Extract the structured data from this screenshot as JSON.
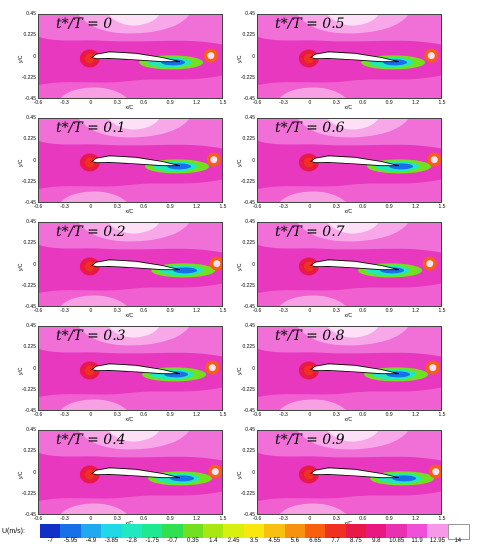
{
  "chart_data": {
    "type": "heatmap",
    "panels": [
      {
        "label": "t*/T = 0"
      },
      {
        "label": "t*/T = 0.5"
      },
      {
        "label": "t*/T = 0.1"
      },
      {
        "label": "t*/T = 0.6"
      },
      {
        "label": "t*/T = 0.2"
      },
      {
        "label": "t*/T = 0.7"
      },
      {
        "label": "t*/T = 0.3"
      },
      {
        "label": "t*/T = 0.8"
      },
      {
        "label": "t*/T = 0.4"
      },
      {
        "label": "t*/T = 0.9"
      }
    ],
    "xlabel": "x/C",
    "ylabel": "y/C",
    "xticks": [
      "-0.6",
      "-0.3",
      "0",
      "0.3",
      "0.6",
      "0.9",
      "1.2",
      "1.5"
    ],
    "yticks": [
      "0.45",
      "0.225",
      "0",
      "-0.225",
      "-0.45"
    ],
    "xlim": [
      -0.6,
      1.5
    ],
    "ylim": [
      -0.45,
      0.45
    ],
    "colorbar": {
      "title": "U(m/s):",
      "levels": [
        "-7",
        "-5.95",
        "-4.9",
        "-3.85",
        "-2.8",
        "-1.75",
        "-0.7",
        "0.35",
        "1.4",
        "2.45",
        "3.5",
        "4.55",
        "5.6",
        "6.65",
        "7.7",
        "8.75",
        "9.8",
        "10.85",
        "11.9",
        "12.95",
        "14"
      ],
      "colors": [
        "#1030c8",
        "#1870e8",
        "#20a8f0",
        "#20d8e8",
        "#20e8c0",
        "#20e890",
        "#30e050",
        "#70e020",
        "#a8e810",
        "#d8f010",
        "#f8e810",
        "#f8c010",
        "#f89010",
        "#f86010",
        "#f03020",
        "#e81848",
        "#e81880",
        "#e830b0",
        "#f050d8",
        "#f898e8",
        "#ffffff"
      ]
    }
  }
}
